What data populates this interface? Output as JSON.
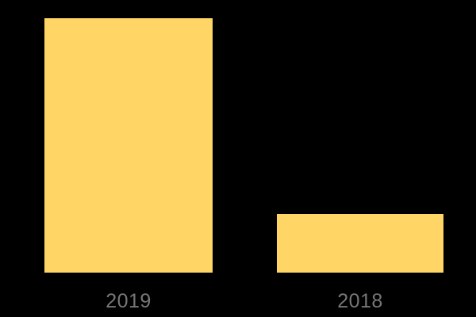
{
  "chart_data": {
    "type": "bar",
    "orientation": "vertical",
    "title": "",
    "xlabel": "",
    "ylabel": "",
    "categories": [
      "2019",
      "2018"
    ],
    "values": [
      321,
      74
    ],
    "ylim": [
      0,
      321
    ],
    "grid": false,
    "legend": false,
    "axes_visible": false,
    "bar_color": "#FFD666",
    "background_color": "#000000",
    "label_color": "#777777"
  }
}
